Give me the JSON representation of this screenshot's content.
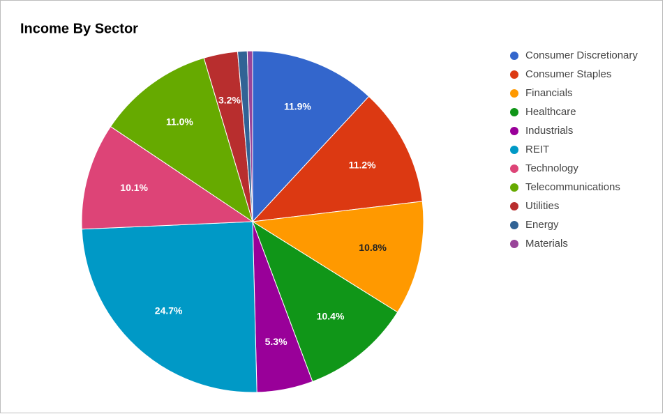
{
  "chart_data": {
    "type": "pie",
    "title": "Income By Sector",
    "categories": [
      "Consumer Discretionary",
      "Consumer Staples",
      "Financials",
      "Healthcare",
      "Industrials",
      "REIT",
      "Technology",
      "Telecommunications",
      "Utilities",
      "Energy",
      "Materials"
    ],
    "values": [
      11.9,
      11.2,
      10.8,
      10.4,
      5.3,
      24.7,
      10.1,
      11.0,
      3.2,
      0.9,
      0.5
    ],
    "value_labels": [
      "11.9%",
      "11.2%",
      "10.8%",
      "10.4%",
      "5.3%",
      "24.7%",
      "10.1%",
      "11.0%",
      "3.2%",
      null,
      null
    ],
    "colors": [
      "#3366cc",
      "#dc3912",
      "#ff9900",
      "#109618",
      "#990099",
      "#0099c6",
      "#dd4477",
      "#66aa00",
      "#b82e2e",
      "#316395",
      "#994499"
    ],
    "legend": "right"
  }
}
